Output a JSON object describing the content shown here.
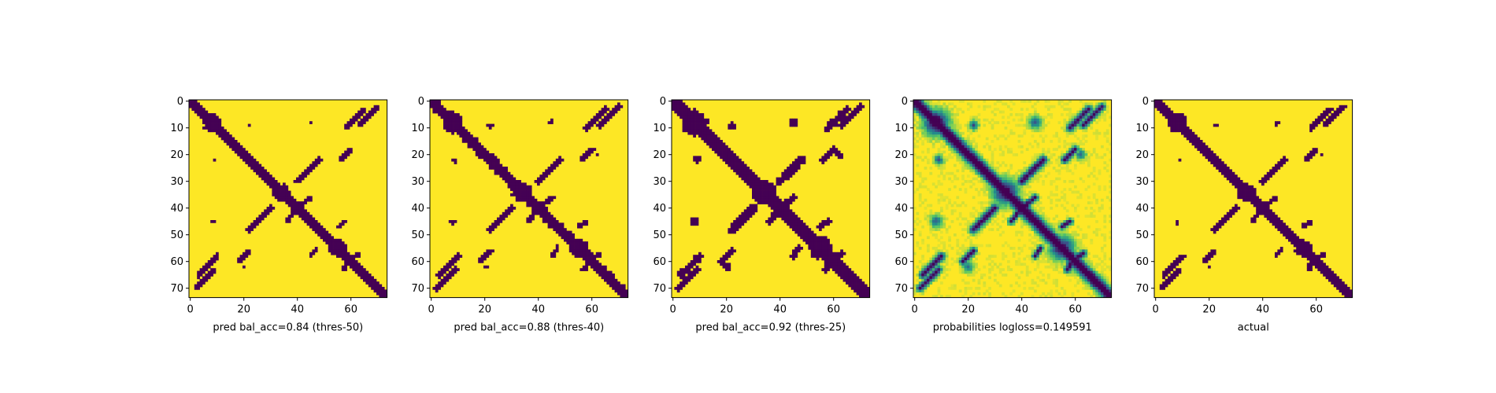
{
  "chart_data": [
    {
      "type": "heatmap",
      "title": "pred bal_acc=0.84 (thres-50)",
      "xticks": [
        0,
        20,
        40,
        60
      ],
      "yticks": [
        0,
        10,
        20,
        30,
        40,
        50,
        60,
        70
      ],
      "xlim": [
        0,
        74
      ],
      "ylim": [
        74,
        0
      ],
      "grid": false,
      "colors": {
        "low": "#440154",
        "high": "#fde725"
      },
      "values": "binary contact map (74x74): low along main diagonal band and secondary streaks, high elsewhere"
    },
    {
      "type": "heatmap",
      "title": "pred bal_acc=0.88 (thres-40)",
      "xticks": [
        0,
        20,
        40,
        60
      ],
      "yticks": [
        0,
        10,
        20,
        30,
        40,
        50,
        60,
        70
      ],
      "xlim": [
        0,
        74
      ],
      "ylim": [
        74,
        0
      ],
      "grid": false,
      "colors": {
        "low": "#440154",
        "high": "#fde725"
      },
      "values": "binary contact map (74x74), slightly thicker contacts"
    },
    {
      "type": "heatmap",
      "title": "pred bal_acc=0.92 (thres-25)",
      "xticks": [
        0,
        20,
        40,
        60
      ],
      "yticks": [
        0,
        10,
        20,
        30,
        40,
        50,
        60,
        70
      ],
      "xlim": [
        0,
        74
      ],
      "ylim": [
        74,
        0
      ],
      "grid": false,
      "colors": {
        "low": "#440154",
        "high": "#fde725"
      },
      "values": "binary contact map (74x74), thickest contacts"
    },
    {
      "type": "heatmap",
      "title": "probabilities logloss=0.149591",
      "xticks": [
        0,
        20,
        40,
        60
      ],
      "yticks": [
        0,
        10,
        20,
        30,
        40,
        50,
        60,
        70
      ],
      "xlim": [
        0,
        74
      ],
      "ylim": [
        74,
        0
      ],
      "grid": false,
      "colors": {
        "low": "#440154",
        "mid": "#21918c",
        "high": "#fde725"
      },
      "values": "continuous probability map (74x74), viridis colormap"
    },
    {
      "type": "heatmap",
      "title": "actual",
      "xticks": [
        0,
        20,
        40,
        60
      ],
      "yticks": [
        0,
        10,
        20,
        30,
        40,
        50,
        60,
        70
      ],
      "xlim": [
        0,
        74
      ],
      "ylim": [
        74,
        0
      ],
      "grid": false,
      "colors": {
        "low": "#440154",
        "high": "#fde725"
      },
      "values": "binary actual contact map (74x74)"
    }
  ]
}
